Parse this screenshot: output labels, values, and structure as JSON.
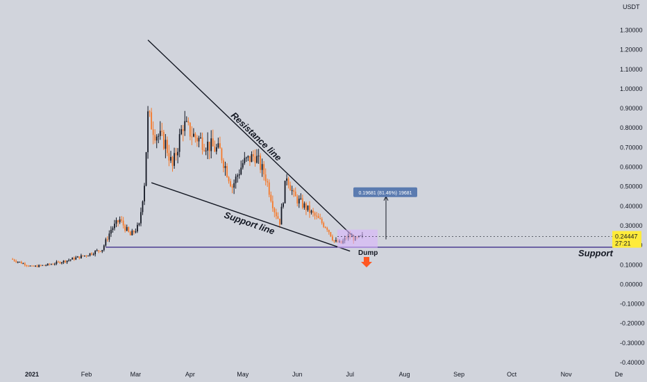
{
  "chart_data": {
    "type": "candlestick",
    "y_unit_label": "USDT",
    "ylim": [
      -0.4,
      1.38
    ],
    "y_ticks": [
      "1.30000",
      "1.20000",
      "1.10000",
      "1.00000",
      "0.90000",
      "0.80000",
      "0.70000",
      "0.60000",
      "0.50000",
      "0.40000",
      "0.30000",
      "0.20000",
      "0.10000",
      "0.00000",
      "-0.10000",
      "-0.20000",
      "-0.30000",
      "-0.40000"
    ],
    "x_ticks": [
      {
        "label": "2021",
        "date": "2021-01-01",
        "bold": true
      },
      {
        "label": "Feb",
        "date": "2021-02-01"
      },
      {
        "label": "Mar",
        "date": "2021-03-01"
      },
      {
        "label": "Apr",
        "date": "2021-04-01"
      },
      {
        "label": "May",
        "date": "2021-05-01"
      },
      {
        "label": "Jun",
        "date": "2021-06-01"
      },
      {
        "label": "Jul",
        "date": "2021-07-01"
      },
      {
        "label": "Aug",
        "date": "2021-08-01"
      },
      {
        "label": "Sep",
        "date": "2021-09-01"
      },
      {
        "label": "Oct",
        "date": "2021-10-01"
      },
      {
        "label": "Nov",
        "date": "2021-11-01"
      },
      {
        "label": "De",
        "date": "2021-12-01"
      }
    ],
    "price_path": [
      [
        "2020-12-20",
        0.13
      ],
      [
        "2021-01-01",
        0.09
      ],
      [
        "2021-01-10",
        0.1
      ],
      [
        "2021-01-20",
        0.12
      ],
      [
        "2021-02-01",
        0.15
      ],
      [
        "2021-02-10",
        0.18
      ],
      [
        "2021-02-15",
        0.28
      ],
      [
        "2021-02-20",
        0.33
      ],
      [
        "2021-02-26",
        0.25
      ],
      [
        "2021-03-03",
        0.3
      ],
      [
        "2021-03-06",
        0.52
      ],
      [
        "2021-03-08",
        0.86
      ],
      [
        "2021-03-12",
        0.78
      ],
      [
        "2021-03-18",
        0.72
      ],
      [
        "2021-03-22",
        0.6
      ],
      [
        "2021-03-28",
        0.82
      ],
      [
        "2021-04-03",
        0.76
      ],
      [
        "2021-04-10",
        0.72
      ],
      [
        "2021-04-18",
        0.68
      ],
      [
        "2021-04-25",
        0.5
      ],
      [
        "2021-05-01",
        0.62
      ],
      [
        "2021-05-08",
        0.66
      ],
      [
        "2021-05-14",
        0.55
      ],
      [
        "2021-05-19",
        0.38
      ],
      [
        "2021-05-22",
        0.32
      ],
      [
        "2021-05-26",
        0.56
      ],
      [
        "2021-05-30",
        0.45
      ],
      [
        "2021-06-05",
        0.4
      ],
      [
        "2021-06-12",
        0.34
      ],
      [
        "2021-06-18",
        0.29
      ],
      [
        "2021-06-22",
        0.22
      ],
      [
        "2021-06-26",
        0.21
      ],
      [
        "2021-06-30",
        0.25
      ],
      [
        "2021-07-04",
        0.23
      ],
      [
        "2021-07-08",
        0.244
      ]
    ],
    "last_price": "0.24447",
    "countdown": "27:21",
    "support_level": 0.19,
    "resistance_line": {
      "start": [
        "2021-03-08",
        1.25
      ],
      "end": [
        "2021-07-01",
        0.26
      ],
      "label": "Resistance line"
    },
    "support_trendline": {
      "start": [
        "2021-03-10",
        0.52
      ],
      "end": [
        "2021-07-01",
        0.17
      ],
      "label": "Support line"
    },
    "horizontal_support": {
      "label": "Support"
    },
    "measure": {
      "label": "0.19681 (81.46%) 19681",
      "from": 0.26,
      "to": 0.45
    },
    "dump_label": "Dump",
    "colors": {
      "background": "#d1d4dc",
      "up": "#131722",
      "down": "#f5792a",
      "lines": "#131722",
      "support": "#3f2f8a",
      "price_tag": "#ffeb3b",
      "measure_tag": "#5b7bb0",
      "range_box": "#d8b4fe",
      "arrow": "#ff5722"
    }
  }
}
